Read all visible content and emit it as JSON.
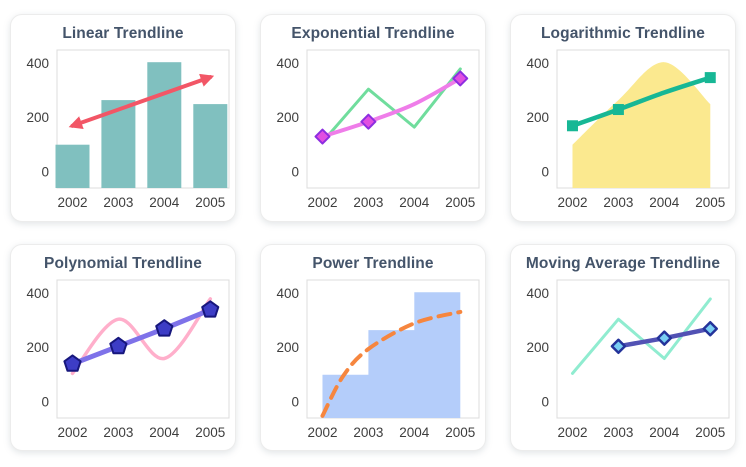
{
  "page": {
    "background": "#ffffff",
    "card_border": "#ececec",
    "title_color": "#44546a",
    "plot_border": "#dcdcdc",
    "tick_color": "#3d3d3d"
  },
  "chart_data": [
    {
      "id": "linear",
      "type": "bar",
      "title": "Linear Trendline",
      "categories": [
        "2002",
        "2003",
        "2004",
        "2005"
      ],
      "y_ticks": [
        400,
        200,
        0
      ],
      "ylim": [
        -60,
        450
      ],
      "grid": false,
      "legend": "none",
      "series": [
        {
          "name": "data",
          "type": "bar",
          "color": "#80c0bf",
          "values": [
            100,
            265,
            405,
            250
          ]
        },
        {
          "name": "linear-trendline",
          "type": "line",
          "color": "#f25666",
          "width": 4,
          "arrows": true,
          "x": [
            0,
            3
          ],
          "values": [
            170,
            350
          ]
        }
      ]
    },
    {
      "id": "exponential",
      "type": "line",
      "title": "Exponential Trendline",
      "categories": [
        "2002",
        "2003",
        "2004",
        "2005"
      ],
      "y_ticks": [
        400,
        200,
        0
      ],
      "ylim": [
        -60,
        450
      ],
      "grid": false,
      "legend": "none",
      "series": [
        {
          "name": "data",
          "type": "line",
          "color": "#70dd9d",
          "width": 3,
          "values": [
            110,
            305,
            165,
            380
          ]
        },
        {
          "name": "exponential-trendline",
          "type": "spline",
          "color": "#ef7de9",
          "width": 4,
          "values": [
            130,
            185,
            250,
            345
          ],
          "marker": {
            "shape": "diamond",
            "size": 7,
            "fill": "#e14fe1",
            "stroke": "#8d2ee0",
            "stroke_width": 2,
            "at": [
              0,
              1,
              3
            ]
          }
        }
      ]
    },
    {
      "id": "logarithmic",
      "type": "area",
      "title": "Logarithmic Trendline",
      "categories": [
        "2002",
        "2003",
        "2004",
        "2005"
      ],
      "y_ticks": [
        400,
        200,
        0
      ],
      "ylim": [
        -60,
        450
      ],
      "grid": false,
      "legend": "none",
      "series": [
        {
          "name": "data",
          "type": "area-spline",
          "color": "#fbe98f",
          "values": [
            100,
            265,
            405,
            250
          ]
        },
        {
          "name": "logarithmic-trendline",
          "type": "spline",
          "color": "#17b795",
          "width": 4.5,
          "values": [
            170,
            230,
            293,
            348
          ],
          "marker": {
            "shape": "square",
            "size": 11,
            "fill": "#17b795",
            "at": [
              0,
              1,
              3
            ]
          }
        }
      ]
    },
    {
      "id": "polynomial",
      "type": "line",
      "title": "Polynomial Trendline",
      "categories": [
        "2002",
        "2003",
        "2004",
        "2005"
      ],
      "y_ticks": [
        400,
        200,
        0
      ],
      "ylim": [
        -60,
        450
      ],
      "grid": false,
      "legend": "none",
      "series": [
        {
          "name": "data",
          "type": "spline",
          "color": "#ffafcb",
          "width": 3.5,
          "values": [
            105,
            305,
            160,
            380
          ]
        },
        {
          "name": "polynomial-trendline",
          "type": "line",
          "color": "#7e72e9",
          "width": 5,
          "values": [
            140,
            205,
            270,
            340
          ],
          "marker": {
            "shape": "pentagon",
            "size": 8.5,
            "fill": "#3d3dc6",
            "stroke": "#17177d",
            "stroke_width": 2,
            "at": [
              0,
              1,
              2,
              3
            ]
          }
        }
      ]
    },
    {
      "id": "power",
      "type": "area",
      "title": "Power Trendline",
      "categories": [
        "2002",
        "2003",
        "2004",
        "2005"
      ],
      "y_ticks": [
        400,
        200,
        0
      ],
      "ylim": [
        -60,
        450
      ],
      "grid": false,
      "legend": "none",
      "series": [
        {
          "name": "data",
          "type": "step-area",
          "color": "#b4cdfa",
          "values": [
            100,
            265,
            405
          ]
        },
        {
          "name": "power-trendline",
          "type": "spline",
          "color": "#f6863f",
          "width": 4,
          "dash": "12 8",
          "x": [
            0,
            0.45,
            1,
            2,
            3
          ],
          "values": [
            -52,
            95,
            195,
            290,
            332
          ]
        }
      ]
    },
    {
      "id": "moving-average",
      "type": "line",
      "title": "Moving Average Trendline",
      "categories": [
        "2002",
        "2003",
        "2004",
        "2005"
      ],
      "y_ticks": [
        400,
        200,
        0
      ],
      "ylim": [
        -60,
        450
      ],
      "grid": false,
      "legend": "none",
      "series": [
        {
          "name": "data",
          "type": "line",
          "color": "#90ecd0",
          "width": 3,
          "values": [
            105,
            305,
            160,
            380
          ]
        },
        {
          "name": "moving-average-trendline",
          "type": "line",
          "color": "#5252b4",
          "width": 4.5,
          "x": [
            1,
            2,
            3
          ],
          "values": [
            205,
            235,
            270
          ],
          "marker": {
            "shape": "diamond",
            "size": 6.5,
            "fill": "#79cef3",
            "stroke": "#24339a",
            "stroke_width": 2.5,
            "at": [
              1,
              2,
              3
            ]
          }
        }
      ]
    }
  ]
}
